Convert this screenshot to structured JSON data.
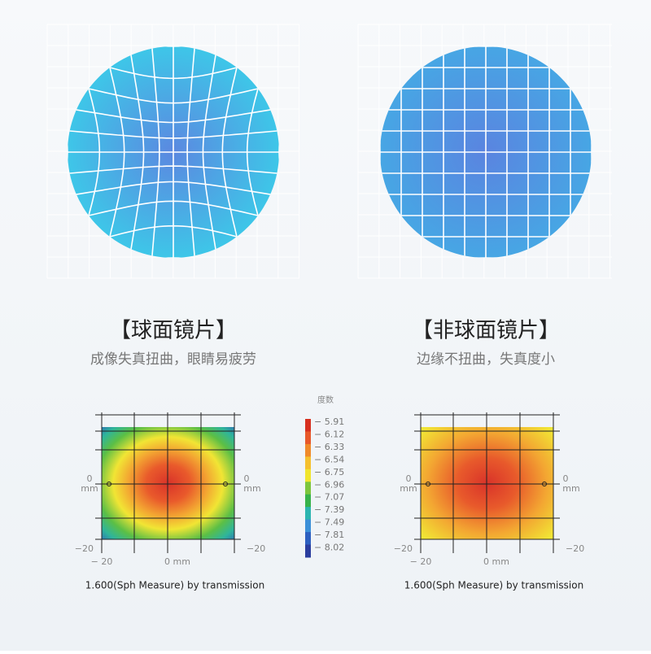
{
  "panels": [
    {
      "title": "【球面镜片】",
      "subtitle": "成像失真扭曲，眼睛易疲劳",
      "axis": {
        "left": [
          "0",
          "mm"
        ],
        "right": [
          "0",
          "mm"
        ],
        "left_bottom": "−20",
        "right_bottom": "−20",
        "bottom_left": "− 20",
        "bottom_center": "0 mm"
      },
      "caption": "1.600(Sph Measure) by transmission"
    },
    {
      "title": "【非球面镜片】",
      "subtitle": "边缘不扭曲，失真度小",
      "axis": {
        "left": [
          "0",
          "mm"
        ],
        "right": [
          "0",
          "mm"
        ],
        "left_bottom": "−20",
        "right_bottom": "−20",
        "bottom_left": "− 20",
        "bottom_center": "0 mm"
      },
      "caption": "1.600(Sph Measure) by transmission"
    }
  ],
  "legend": {
    "title": "度数",
    "items": [
      "− 5.91",
      "− 6.12",
      "− 6.33",
      "− 6.54",
      "− 6.75",
      "− 6.96",
      "− 7.07",
      "− 7.39",
      "− 7.49",
      "− 7.81",
      "− 8.02"
    ]
  }
}
